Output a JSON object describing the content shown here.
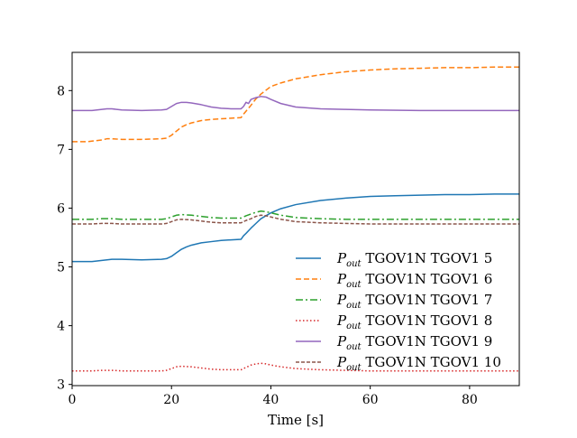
{
  "chart_data": {
    "type": "line",
    "title": "",
    "xlabel": "Time [s]",
    "ylabel": "",
    "xlim": [
      0,
      90
    ],
    "ylim": [
      2.98,
      8.65
    ],
    "grid": false,
    "legend_position": "lower-right",
    "x_ticks": [
      {
        "value": 0,
        "label": "0"
      },
      {
        "value": 20,
        "label": "20"
      },
      {
        "value": 40,
        "label": "40"
      },
      {
        "value": 60,
        "label": "60"
      },
      {
        "value": 80,
        "label": "80"
      }
    ],
    "y_ticks": [
      {
        "value": 3,
        "label": "3"
      },
      {
        "value": 4,
        "label": "4"
      },
      {
        "value": 5,
        "label": "5"
      },
      {
        "value": 6,
        "label": "6"
      },
      {
        "value": 7,
        "label": "7"
      },
      {
        "value": 8,
        "label": "8"
      }
    ],
    "series": [
      {
        "name": "P_out TGOV1N TGOV1 5",
        "legend_symbol": "P",
        "legend_sub": "out",
        "legend_rest": " TGOV1N TGOV1 5",
        "color": "#1f77b4",
        "dash": "",
        "x": [
          0,
          4,
          5,
          6,
          7,
          8,
          10,
          14,
          18,
          19,
          20,
          21,
          22,
          23,
          24,
          26,
          28,
          30,
          32,
          34,
          34.5,
          35,
          36,
          37,
          38,
          40,
          42,
          45,
          50,
          55,
          60,
          65,
          70,
          75,
          80,
          85,
          90
        ],
        "y": [
          5.09,
          5.09,
          5.1,
          5.11,
          5.12,
          5.13,
          5.13,
          5.12,
          5.13,
          5.14,
          5.18,
          5.24,
          5.3,
          5.34,
          5.37,
          5.41,
          5.43,
          5.45,
          5.46,
          5.47,
          5.53,
          5.57,
          5.66,
          5.74,
          5.82,
          5.92,
          5.99,
          6.06,
          6.13,
          6.17,
          6.2,
          6.21,
          6.22,
          6.23,
          6.23,
          6.24,
          6.24
        ]
      },
      {
        "name": "P_out TGOV1N TGOV1 6",
        "legend_symbol": "P",
        "legend_sub": "out",
        "legend_rest": " TGOV1N TGOV1 6",
        "color": "#ff7f0e",
        "dash": "6,3",
        "x": [
          0,
          3,
          5,
          6,
          7,
          8,
          10,
          14,
          18,
          19,
          20,
          21,
          22,
          23,
          24,
          26,
          28,
          30,
          32,
          34,
          34.5,
          35,
          36,
          37,
          38,
          40,
          42,
          45,
          50,
          55,
          60,
          65,
          70,
          75,
          80,
          85,
          90
        ],
        "y": [
          7.13,
          7.13,
          7.15,
          7.16,
          7.18,
          7.18,
          7.17,
          7.17,
          7.18,
          7.19,
          7.24,
          7.31,
          7.38,
          7.42,
          7.45,
          7.49,
          7.51,
          7.52,
          7.53,
          7.54,
          7.6,
          7.65,
          7.75,
          7.86,
          7.94,
          8.07,
          8.13,
          8.2,
          8.27,
          8.32,
          8.35,
          8.37,
          8.38,
          8.39,
          8.39,
          8.4,
          8.4
        ]
      },
      {
        "name": "P_out TGOV1N TGOV1 7",
        "legend_symbol": "P",
        "legend_sub": "out",
        "legend_rest": " TGOV1N TGOV1 7",
        "color": "#2ca02c",
        "dash": "8,3,2,3",
        "x": [
          0,
          4,
          6,
          8,
          10,
          14,
          18,
          19,
          20,
          21,
          22,
          24,
          26,
          28,
          30,
          32,
          34,
          35,
          36,
          37,
          38,
          39,
          40,
          42,
          45,
          50,
          55,
          60,
          70,
          80,
          90
        ],
        "y": [
          5.81,
          5.81,
          5.82,
          5.82,
          5.81,
          5.81,
          5.81,
          5.82,
          5.85,
          5.88,
          5.89,
          5.88,
          5.86,
          5.84,
          5.83,
          5.83,
          5.83,
          5.87,
          5.9,
          5.93,
          5.95,
          5.94,
          5.92,
          5.88,
          5.84,
          5.82,
          5.81,
          5.81,
          5.81,
          5.81,
          5.81
        ]
      },
      {
        "name": "P_out TGOV1N TGOV1 8",
        "legend_symbol": "P",
        "legend_sub": "out",
        "legend_rest": " TGOV1N TGOV1 8",
        "color": "#d62728",
        "dash": "1.5,2.5",
        "x": [
          0,
          4,
          6,
          8,
          10,
          14,
          18,
          19,
          20,
          21,
          22,
          24,
          26,
          28,
          30,
          32,
          34,
          35,
          36,
          37,
          38,
          39,
          40,
          42,
          45,
          50,
          55,
          60,
          70,
          80,
          90
        ],
        "y": [
          3.23,
          3.23,
          3.24,
          3.24,
          3.23,
          3.23,
          3.23,
          3.24,
          3.27,
          3.3,
          3.31,
          3.3,
          3.28,
          3.26,
          3.25,
          3.25,
          3.25,
          3.29,
          3.33,
          3.35,
          3.36,
          3.35,
          3.33,
          3.3,
          3.27,
          3.25,
          3.24,
          3.23,
          3.23,
          3.23,
          3.23
        ]
      },
      {
        "name": "P_out TGOV1N TGOV1 9",
        "legend_symbol": "P",
        "legend_sub": "out",
        "legend_rest": " TGOV1N TGOV1 9",
        "color": "#9467bd",
        "dash": "",
        "x": [
          0,
          4,
          5,
          6,
          7,
          8,
          10,
          14,
          18,
          19,
          20,
          21,
          22,
          23,
          24,
          26,
          28,
          30,
          32,
          34,
          34.5,
          35,
          35.5,
          36,
          37,
          38,
          39,
          40,
          42,
          45,
          50,
          55,
          60,
          70,
          80,
          90
        ],
        "y": [
          7.66,
          7.66,
          7.67,
          7.68,
          7.69,
          7.69,
          7.67,
          7.66,
          7.67,
          7.68,
          7.73,
          7.78,
          7.8,
          7.8,
          7.79,
          7.76,
          7.72,
          7.7,
          7.69,
          7.69,
          7.73,
          7.8,
          7.78,
          7.85,
          7.88,
          7.9,
          7.89,
          7.85,
          7.78,
          7.72,
          7.69,
          7.68,
          7.67,
          7.66,
          7.66,
          7.66
        ]
      },
      {
        "name": "P_out TGOV1N TGOV1 10",
        "legend_symbol": "P",
        "legend_sub": "out",
        "legend_rest": " TGOV1N TGOV1 10",
        "color": "#8c564b",
        "dash": "4,2",
        "x": [
          0,
          4,
          6,
          8,
          10,
          14,
          18,
          19,
          20,
          21,
          22,
          24,
          26,
          28,
          30,
          32,
          34,
          35,
          36,
          37,
          38,
          39,
          40,
          42,
          45,
          50,
          55,
          60,
          70,
          80,
          90
        ],
        "y": [
          5.73,
          5.73,
          5.74,
          5.74,
          5.73,
          5.73,
          5.73,
          5.74,
          5.77,
          5.8,
          5.81,
          5.8,
          5.78,
          5.76,
          5.75,
          5.75,
          5.75,
          5.79,
          5.82,
          5.86,
          5.88,
          5.87,
          5.85,
          5.81,
          5.77,
          5.75,
          5.74,
          5.73,
          5.73,
          5.73,
          5.73
        ]
      }
    ]
  }
}
